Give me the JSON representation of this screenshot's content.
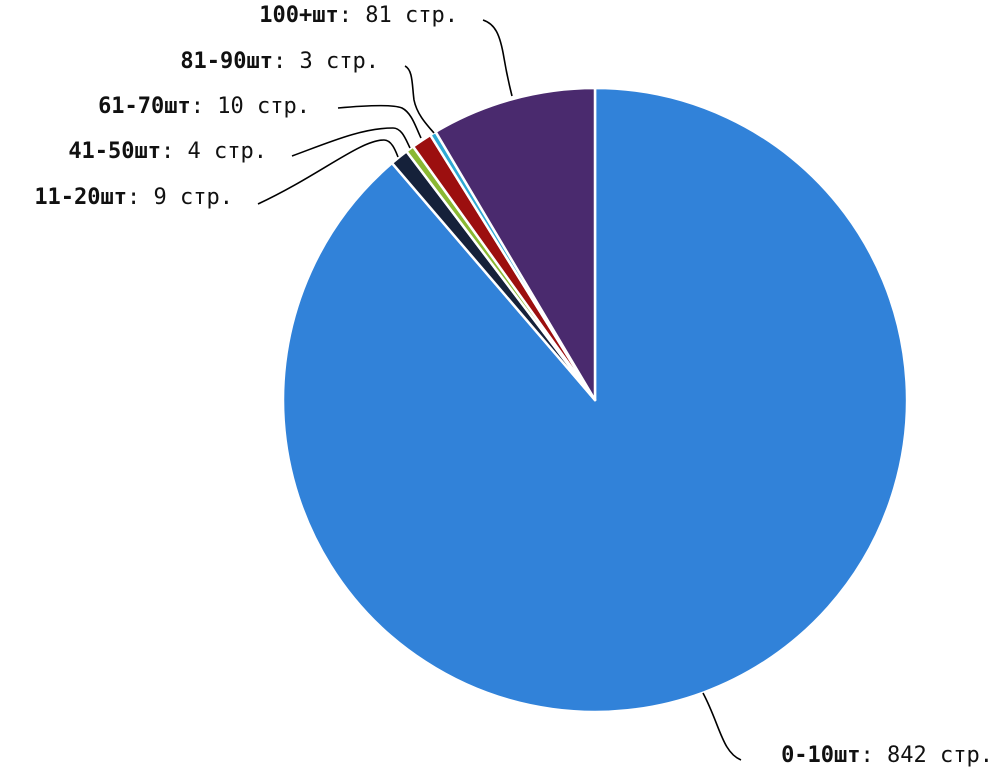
{
  "chart_data": {
    "type": "pie",
    "title": "",
    "unit": "стр.",
    "slices": [
      {
        "name": "0-10шт",
        "value": 842,
        "color": "#3182d9"
      },
      {
        "name": "11-20шт",
        "value": 9,
        "color": "#15213a"
      },
      {
        "name": "41-50шт",
        "value": 4,
        "color": "#8ab832"
      },
      {
        "name": "61-70шт",
        "value": 10,
        "color": "#9c0f0f"
      },
      {
        "name": "81-90шт",
        "value": 3,
        "color": "#2fa9d4"
      },
      {
        "name": "100+шт",
        "value": 81,
        "color": "#4a2a6e"
      }
    ],
    "start_angle": "top",
    "direction": "clockwise",
    "legend": "none"
  }
}
